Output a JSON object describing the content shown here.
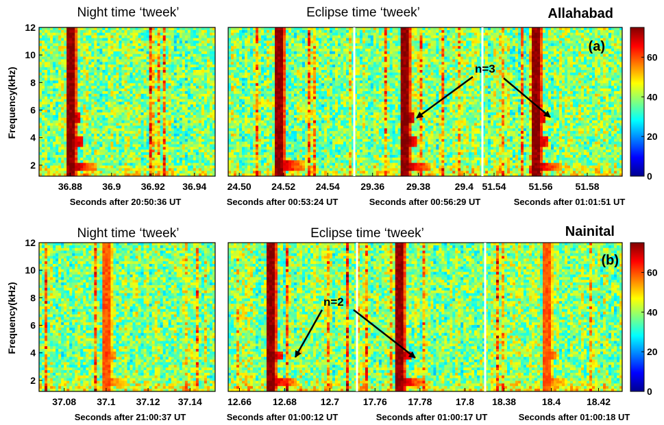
{
  "chart_data": [
    {
      "id": "a",
      "type": "heatmap",
      "station": "Allahabad",
      "panel_label": "(a)",
      "ylabel": "Frequency(kHz)",
      "yticks": [
        2,
        4,
        6,
        8,
        10,
        12
      ],
      "ylim": [
        1.2,
        12
      ],
      "colorbar": {
        "min": 0,
        "max": 75,
        "ticks": [
          0,
          20,
          40,
          60
        ]
      },
      "annotation": {
        "text": "n=3",
        "arrow_targets": [
          {
            "subplot": 2,
            "x": 29.378,
            "y": 5.3
          },
          {
            "subplot": 3,
            "x": 51.56,
            "y": 5.3
          }
        ]
      },
      "subplots": [
        {
          "title": "Night time ‘tweek’",
          "xlabel": "Seconds after 20:50:36 UT",
          "xlim": [
            36.865,
            36.95
          ],
          "xticks": [
            36.88,
            36.9,
            36.92,
            36.94
          ],
          "xtick_labels": [
            "36.88",
            "36.9",
            "36.92",
            "36.94"
          ],
          "tweek_time": 36.88,
          "harmonic_cutoffs_khz": [
            1.7,
            3.5,
            5.3
          ],
          "strength": "strong"
        },
        {
          "title": "Eclipse time ‘tweek’",
          "xlabel": "Seconds after 00:53:24 UT",
          "xlim": [
            24.495,
            24.552
          ],
          "xticks": [
            24.5,
            24.52,
            24.54
          ],
          "xtick_labels": [
            "24.50",
            "24.52",
            "24.54"
          ],
          "tweek_time": 24.517,
          "harmonic_cutoffs_khz": [
            1.8
          ],
          "strength": "strong"
        },
        {
          "title": "",
          "xlabel": "Seconds after 00:56:29 UT",
          "xlim": [
            29.352,
            29.408
          ],
          "xticks": [
            29.36,
            29.38,
            29.4
          ],
          "xtick_labels": [
            "29.36",
            "29.38",
            "29.4"
          ],
          "tweek_time": 29.374,
          "harmonic_cutoffs_khz": [
            1.7,
            3.5,
            5.3
          ],
          "strength": "strong"
        },
        {
          "title": "",
          "xlabel": "Seconds after 01:01:51 UT",
          "xlim": [
            51.535,
            51.595
          ],
          "xticks": [
            51.54,
            51.56,
            51.58
          ],
          "xtick_labels": [
            "51.54",
            "51.56",
            "51.58"
          ],
          "tweek_time": 51.557,
          "harmonic_cutoffs_khz": [
            1.7,
            3.5,
            5.3
          ],
          "strength": "strong"
        }
      ]
    },
    {
      "id": "b",
      "type": "heatmap",
      "station": "Nainital",
      "panel_label": "(b)",
      "ylabel": "Frequency(kHz)",
      "yticks": [
        2,
        4,
        6,
        8,
        10,
        12
      ],
      "ylim": [
        1.2,
        12
      ],
      "colorbar": {
        "min": 0,
        "max": 75,
        "ticks": [
          0,
          20,
          40,
          60
        ]
      },
      "annotation": {
        "text": "n=2",
        "arrow_targets": [
          {
            "subplot": 1,
            "x": 12.678,
            "y": 3.4
          },
          {
            "subplot": 2,
            "x": 17.778,
            "y": 3.6
          }
        ]
      },
      "subplots": [
        {
          "title": "Night time ‘tweek’",
          "xlabel": "Seconds after 21:00:37 UT",
          "xlim": [
            37.068,
            37.152
          ],
          "xticks": [
            37.08,
            37.1,
            37.12,
            37.14
          ],
          "xtick_labels": [
            "37.08",
            "37.1",
            "37.12",
            "37.14"
          ],
          "tweek_time": 37.1,
          "harmonic_cutoffs_khz": [
            1.7,
            3.6
          ],
          "strength": "medium"
        },
        {
          "title": "Eclipse time ‘tweek’",
          "xlabel": "Seconds after 01:00:12 UT",
          "xlim": [
            12.655,
            12.712
          ],
          "xticks": [
            12.66,
            12.68,
            12.7
          ],
          "xtick_labels": [
            "12.66",
            "12.68",
            "12.7"
          ],
          "tweek_time": 12.673,
          "harmonic_cutoffs_khz": [
            1.7,
            3.6
          ],
          "strength": "strong"
        },
        {
          "title": "",
          "xlabel": "Seconds after 01:00:17 UT",
          "xlim": [
            17.752,
            17.809
          ],
          "xticks": [
            17.76,
            17.78,
            17.8
          ],
          "xtick_labels": [
            "17.76",
            "17.78",
            "17.8"
          ],
          "tweek_time": 17.77,
          "harmonic_cutoffs_khz": [
            1.7,
            3.6
          ],
          "strength": "strong"
        },
        {
          "title": "",
          "xlabel": "Seconds after 01:00:18 UT",
          "xlim": [
            18.372,
            18.43
          ],
          "xticks": [
            18.38,
            18.4,
            18.42
          ],
          "xtick_labels": [
            "18.38",
            "18.4",
            "18.42"
          ],
          "tweek_time": 18.398,
          "harmonic_cutoffs_khz": [
            1.7,
            3.6
          ],
          "strength": "medium"
        }
      ]
    }
  ]
}
